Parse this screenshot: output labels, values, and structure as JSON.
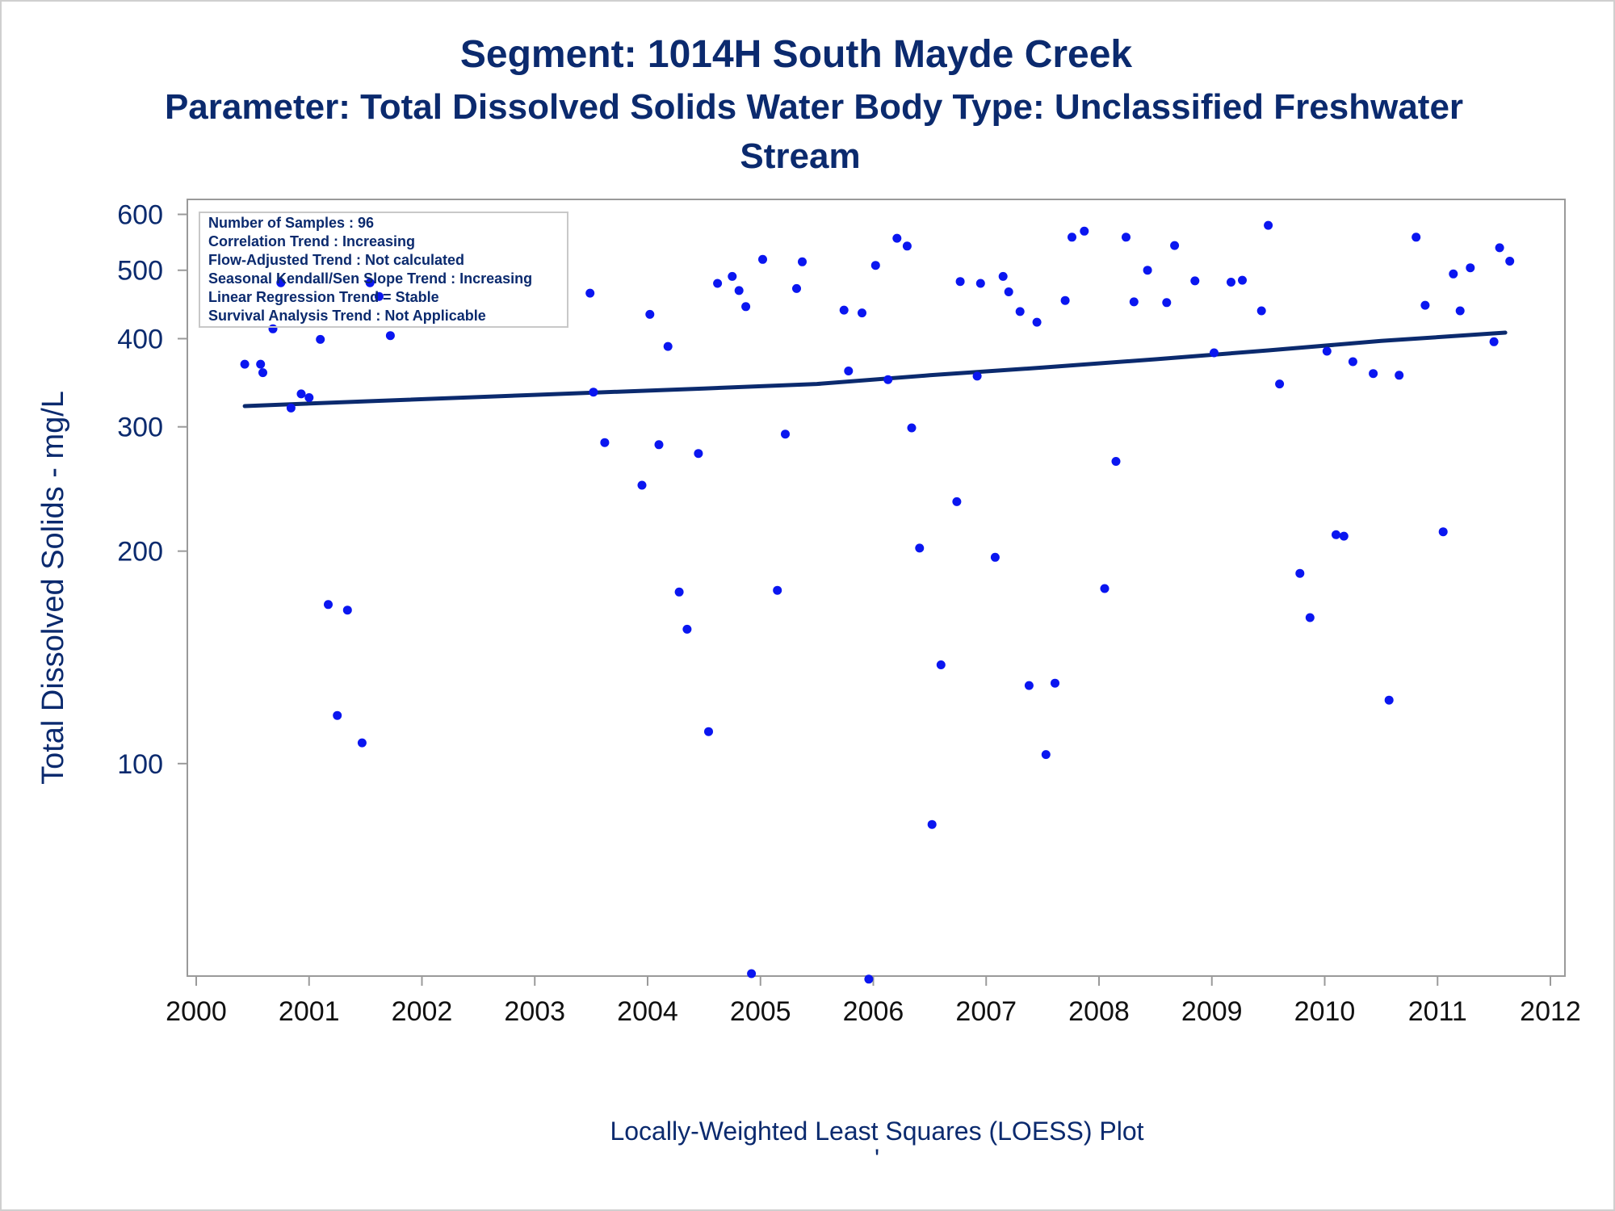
{
  "chart_data": {
    "type": "scatter",
    "title": "Segment: 1014H  South Mayde Creek",
    "subtitle_lines": [
      "Parameter: Total Dissolved Solids   Water Body Type: Unclassified Freshwater",
      "Stream"
    ],
    "xlabel": "",
    "ylabel": "Total Dissolved Solids - mg/L",
    "footnote": "Locally-Weighted Least Squares (LOESS) Plot",
    "footnote_mark": "'",
    "x_scale": "date",
    "y_scale": "log",
    "xlim": [
      2000,
      2012
    ],
    "ylim": [
      50,
      630
    ],
    "x_ticks": [
      "2000",
      "2001",
      "2002",
      "2003",
      "2004",
      "2005",
      "2006",
      "2007",
      "2008",
      "2009",
      "2010",
      "2011",
      "2012"
    ],
    "y_ticks": [
      100,
      200,
      300,
      400,
      500,
      600
    ],
    "y_tick_labels": [
      "100",
      "200",
      "300",
      "400",
      "500",
      "600"
    ],
    "grid": false,
    "stats_box": {
      "placement": "top-left",
      "lines": [
        "Number of Samples : 96",
        "Correlation Trend : Increasing",
        "Flow-Adjusted Trend : Not calculated",
        "Seasonal Kendall/Sen Slope Trend : Increasing",
        "Linear Regression Trend = Stable",
        "Survival Analysis Trend : Not Applicable"
      ]
    },
    "colors": {
      "points": "#0a16f0",
      "line": "#0b2a6e",
      "text": "#0b2a6e",
      "axis": "#9a9a9a"
    },
    "points": [
      [
        2000.43,
        368
      ],
      [
        2000.57,
        368
      ],
      [
        2000.59,
        358
      ],
      [
        2000.68,
        413
      ],
      [
        2000.75,
        480
      ],
      [
        2000.84,
        319
      ],
      [
        2000.93,
        334
      ],
      [
        2001.0,
        330
      ],
      [
        2001.1,
        399
      ],
      [
        2001.17,
        168
      ],
      [
        2001.25,
        117
      ],
      [
        2001.34,
        165
      ],
      [
        2001.47,
        107
      ],
      [
        2001.54,
        480
      ],
      [
        2001.62,
        459
      ],
      [
        2001.72,
        404
      ],
      [
        2003.49,
        464
      ],
      [
        2003.52,
        336
      ],
      [
        2003.62,
        285
      ],
      [
        2003.95,
        248
      ],
      [
        2004.02,
        433
      ],
      [
        2004.1,
        283
      ],
      [
        2004.18,
        390
      ],
      [
        2004.28,
        175
      ],
      [
        2004.35,
        155
      ],
      [
        2004.45,
        275
      ],
      [
        2004.54,
        111
      ],
      [
        2004.62,
        479
      ],
      [
        2004.75,
        490
      ],
      [
        2004.81,
        468
      ],
      [
        2004.87,
        444
      ],
      [
        2004.92,
        50.4
      ],
      [
        2005.02,
        518
      ],
      [
        2005.15,
        176
      ],
      [
        2005.22,
        293
      ],
      [
        2005.32,
        471
      ],
      [
        2005.37,
        514
      ],
      [
        2005.74,
        439
      ],
      [
        2005.78,
        360
      ],
      [
        2005.9,
        435
      ],
      [
        2005.96,
        49.5
      ],
      [
        2006.02,
        508
      ],
      [
        2006.13,
        350
      ],
      [
        2006.21,
        555
      ],
      [
        2006.3,
        541
      ],
      [
        2006.34,
        299
      ],
      [
        2006.41,
        202
      ],
      [
        2006.52,
        82
      ],
      [
        2006.6,
        138
      ],
      [
        2006.74,
        235
      ],
      [
        2006.77,
        482
      ],
      [
        2006.92,
        354
      ],
      [
        2006.95,
        479
      ],
      [
        2007.08,
        196
      ],
      [
        2007.15,
        490
      ],
      [
        2007.2,
        466
      ],
      [
        2007.3,
        437
      ],
      [
        2007.38,
        129
      ],
      [
        2007.45,
        422
      ],
      [
        2007.53,
        103
      ],
      [
        2007.61,
        130
      ],
      [
        2007.7,
        453
      ],
      [
        2007.76,
        557
      ],
      [
        2007.87,
        568
      ],
      [
        2008.05,
        177
      ],
      [
        2008.15,
        268
      ],
      [
        2008.24,
        557
      ],
      [
        2008.31,
        451
      ],
      [
        2008.43,
        500
      ],
      [
        2008.6,
        450
      ],
      [
        2008.67,
        542
      ],
      [
        2008.85,
        483
      ],
      [
        2009.02,
        382
      ],
      [
        2009.17,
        481
      ],
      [
        2009.27,
        484
      ],
      [
        2009.44,
        438
      ],
      [
        2009.5,
        579
      ],
      [
        2009.6,
        345
      ],
      [
        2009.78,
        186
      ],
      [
        2009.87,
        161
      ],
      [
        2010.02,
        384
      ],
      [
        2010.1,
        211
      ],
      [
        2010.17,
        210
      ],
      [
        2010.25,
        371
      ],
      [
        2010.43,
        357
      ],
      [
        2010.57,
        123
      ],
      [
        2010.66,
        355
      ],
      [
        2010.81,
        557
      ],
      [
        2010.89,
        446
      ],
      [
        2011.05,
        213
      ],
      [
        2011.14,
        494
      ],
      [
        2011.2,
        438
      ],
      [
        2011.29,
        504
      ],
      [
        2011.5,
        396
      ],
      [
        2011.55,
        538
      ],
      [
        2011.64,
        515
      ]
    ],
    "trend_line": [
      [
        2000.43,
        321
      ],
      [
        2001.5,
        326
      ],
      [
        2003.0,
        333
      ],
      [
        2004.5,
        340
      ],
      [
        2005.5,
        345
      ],
      [
        2006.5,
        355
      ],
      [
        2007.5,
        364
      ],
      [
        2008.5,
        374
      ],
      [
        2009.5,
        385
      ],
      [
        2010.5,
        397
      ],
      [
        2011.6,
        408
      ]
    ]
  }
}
